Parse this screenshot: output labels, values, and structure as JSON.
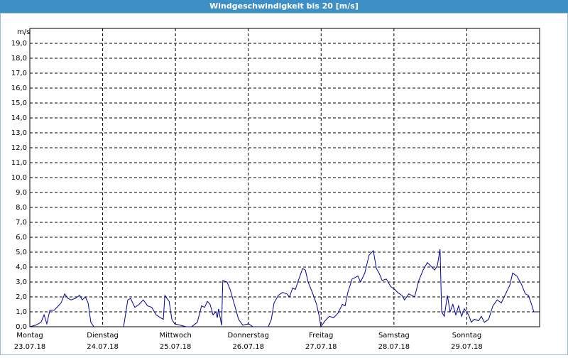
{
  "chart_data": {
    "type": "line",
    "title": "Windgeschwindigkeit bis 20 [m/s]",
    "y_unit": "m/s",
    "xlim": [
      0,
      168
    ],
    "xticks": [
      {
        "value": 0,
        "label": "Montag"
      },
      {
        "value": 24,
        "label": "Dienstag"
      },
      {
        "value": 48,
        "label": "Mittwoch"
      },
      {
        "value": 72,
        "label": "Donnerstag"
      },
      {
        "value": 96,
        "label": "Freitag"
      },
      {
        "value": 120,
        "label": "Samstag"
      },
      {
        "value": 144,
        "label": "Sonntag"
      }
    ],
    "xtick_dates": [
      "23.07.18",
      "24.07.18",
      "25.07.18",
      "26.07.18",
      "27.07.18",
      "28.07.18",
      "29.07.18"
    ],
    "ylim": [
      0,
      20
    ],
    "yticks": [
      {
        "value": 0,
        "label": "0,0"
      },
      {
        "value": 1,
        "label": "1,0"
      },
      {
        "value": 2,
        "label": "2,0"
      },
      {
        "value": 3,
        "label": "3,0"
      },
      {
        "value": 4,
        "label": "4,0"
      },
      {
        "value": 5,
        "label": "5,0"
      },
      {
        "value": 6,
        "label": "6,0"
      },
      {
        "value": 7,
        "label": "7,0"
      },
      {
        "value": 8,
        "label": "8,0"
      },
      {
        "value": 9,
        "label": "9,0"
      },
      {
        "value": 10,
        "label": "10,0"
      },
      {
        "value": 11,
        "label": "11,0"
      },
      {
        "value": 12,
        "label": "12,0"
      },
      {
        "value": 13,
        "label": "13,0"
      },
      {
        "value": 14,
        "label": "14,0"
      },
      {
        "value": 15,
        "label": "15,0"
      },
      {
        "value": 16,
        "label": "16,0"
      },
      {
        "value": 17,
        "label": "17,0"
      },
      {
        "value": 18,
        "label": "18,0"
      },
      {
        "value": 19,
        "label": "19,0"
      }
    ],
    "grid": true,
    "series": [
      {
        "color": "#0000a0",
        "x": [
          0,
          1.9,
          3.7,
          4.7,
          5.6,
          6.6,
          8.0,
          9.4,
          10.3,
          11.5,
          12.6,
          13.6,
          15.0,
          16.4,
          17.3,
          18.3,
          19.2,
          20.1,
          21.1,
          25.3,
          30.9,
          32.3,
          33.2,
          34.6,
          36.0,
          37.4,
          38.8,
          40.2,
          41.6,
          43.1,
          44.0,
          44.5,
          45.9,
          46.8,
          47.7,
          49.6,
          51.5,
          53.3,
          55.2,
          56.6,
          57.6,
          58.5,
          59.4,
          60.4,
          61.3,
          61.8,
          62.2,
          63.2,
          63.6,
          65.0,
          66.0,
          67.4,
          68.8,
          70.2,
          72.1,
          73.5,
          78.6,
          79.6,
          80.5,
          81.9,
          83.3,
          84.7,
          85.6,
          86.6,
          87.5,
          88.5,
          89.9,
          90.8,
          91.7,
          93.1,
          94.5,
          95.5,
          95.9,
          97.3,
          98.7,
          100.1,
          101.5,
          103.0,
          103.9,
          104.8,
          106.2,
          107.2,
          108.1,
          109.0,
          110.4,
          111.8,
          113.2,
          114.2,
          115.1,
          116.1,
          117.5,
          118.9,
          120.3,
          121.2,
          122.6,
          123.5,
          124.9,
          125.9,
          126.8,
          128.2,
          129.6,
          131.0,
          132.0,
          133.4,
          134.3,
          135.2,
          135.7,
          136.6,
          137.6,
          138.5,
          139.4,
          140.4,
          141.3,
          142.3,
          143.2,
          144.6,
          145.5,
          146.5,
          147.9,
          148.8,
          149.8,
          151.2,
          152.6,
          154.0,
          155.4,
          156.8,
          158.2,
          159.1,
          160.5,
          161.9,
          163.3,
          164.3,
          165.2,
          166.1,
          167.1
        ],
        "values": [
          0,
          0.1,
          0.3,
          0.8,
          0.2,
          1.1,
          1.1,
          1.4,
          1.6,
          2.2,
          1.9,
          1.8,
          1.9,
          2.1,
          1.8,
          2.0,
          1.6,
          0.3,
          0,
          null,
          0,
          1.8,
          1.9,
          1.3,
          1.5,
          1.8,
          1.4,
          1.3,
          0.8,
          0.6,
          0.5,
          2.1,
          1.7,
          0.5,
          0.2,
          0.1,
          0,
          0,
          0.3,
          1.4,
          1.3,
          1.7,
          1.5,
          0.8,
          1.0,
          0.6,
          1.2,
          0.1,
          3.1,
          3.0,
          2.5,
          1.5,
          0.5,
          0.1,
          0.2,
          0,
          0,
          0.5,
          1.6,
          2.1,
          2.3,
          2.2,
          2.0,
          2.6,
          2.5,
          3.1,
          3.9,
          3.8,
          3.0,
          2.3,
          1.5,
          0.6,
          0,
          0.4,
          0.7,
          0.6,
          0.9,
          1.5,
          1.4,
          2.3,
          3.2,
          3.3,
          3.4,
          3.0,
          3.6,
          4.8,
          5.1,
          3.9,
          3.6,
          3.1,
          3.2,
          2.7,
          2.5,
          2.3,
          2.1,
          1.8,
          2.2,
          2.1,
          2.0,
          3.1,
          3.8,
          4.3,
          4.1,
          3.8,
          4.1,
          5.2,
          1.0,
          0.7,
          2.1,
          1.0,
          1.5,
          0.8,
          1.4,
          0.7,
          1.2,
          0.8,
          0.3,
          0.5,
          0.4,
          0.7,
          0.3,
          0.5,
          1.4,
          1.8,
          1.6,
          2.2,
          2.8,
          3.6,
          3.4,
          2.9,
          2.2,
          2.1,
          1.6,
          1.0,
          1.0
        ]
      }
    ]
  }
}
